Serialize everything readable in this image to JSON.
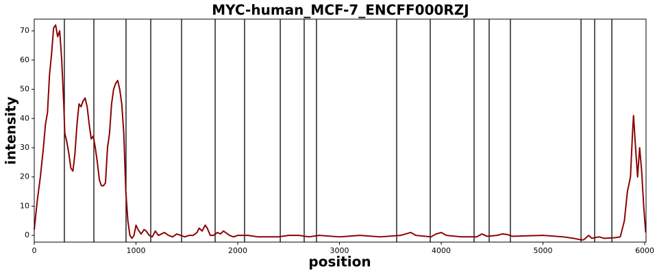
{
  "chart_data": {
    "type": "line",
    "title": "MYC-human_MCF-7_ENCFF000RZJ",
    "x_label": "position",
    "y_label": "intensity",
    "xlim": [
      0,
      6013
    ],
    "ylim": [
      -2.3,
      74
    ],
    "xticks": [
      0,
      1000,
      2000,
      3000,
      4000,
      5000,
      6000
    ],
    "yticks": [
      0,
      10,
      20,
      30,
      40,
      50,
      60,
      70
    ],
    "boundaries": [
      296,
      586,
      902,
      1145,
      1448,
      1778,
      2067,
      2418,
      2653,
      2774,
      3562,
      3892,
      4323,
      4471,
      4680,
      5374,
      5508,
      5677
    ],
    "boundary_color": "#000000",
    "x": [
      0,
      30,
      60,
      90,
      110,
      130,
      150,
      170,
      190,
      210,
      230,
      250,
      270,
      290,
      300,
      320,
      340,
      360,
      380,
      400,
      420,
      440,
      460,
      480,
      500,
      520,
      540,
      560,
      580,
      600,
      620,
      640,
      660,
      680,
      700,
      720,
      740,
      760,
      780,
      800,
      820,
      840,
      860,
      880,
      900,
      920,
      940,
      960,
      980,
      1000,
      1020,
      1050,
      1080,
      1100,
      1130,
      1160,
      1190,
      1220,
      1250,
      1280,
      1320,
      1360,
      1400,
      1440,
      1480,
      1520,
      1560,
      1600,
      1620,
      1650,
      1680,
      1700,
      1730,
      1760,
      1780,
      1800,
      1830,
      1860,
      1880,
      1920,
      1960,
      2000,
      2100,
      2200,
      2300,
      2400,
      2500,
      2600,
      2700,
      2800,
      3000,
      3200,
      3400,
      3600,
      3650,
      3700,
      3750,
      3900,
      3950,
      4000,
      4050,
      4200,
      4350,
      4400,
      4450,
      4550,
      4600,
      4650,
      4700,
      5000,
      5200,
      5300,
      5370,
      5400,
      5450,
      5480,
      5550,
      5600,
      5700,
      5760,
      5800,
      5830,
      5860,
      5880,
      5890,
      5910,
      5930,
      5950,
      5970,
      5990,
      6010
    ],
    "series": [
      {
        "color": "#8b0000",
        "values": [
          2,
          12,
          20,
          30,
          38,
          42,
          55,
          62,
          71,
          72,
          68,
          70,
          60,
          45,
          35,
          32,
          28,
          23,
          22,
          28,
          38,
          45,
          44,
          46,
          47,
          44,
          38,
          33,
          34,
          30,
          25,
          19,
          17,
          17,
          18,
          30,
          35,
          45,
          50,
          52,
          53,
          50,
          45,
          35,
          15,
          5,
          0,
          -1,
          0,
          3.5,
          2,
          0.5,
          2,
          1.5,
          0,
          -0.5,
          1.5,
          0,
          0.5,
          1,
          0,
          -0.5,
          0.5,
          0,
          -0.5,
          0,
          0,
          1,
          2.5,
          1.5,
          3.5,
          2.5,
          0,
          0,
          0.5,
          1,
          0.5,
          1.5,
          1,
          0,
          -0.5,
          0,
          0,
          -0.5,
          -0.5,
          -0.5,
          0,
          0,
          -0.5,
          0,
          -0.5,
          0,
          -0.5,
          0,
          0.5,
          1,
          0,
          -0.5,
          0.5,
          1,
          0,
          -0.5,
          -0.5,
          0.5,
          -0.3,
          0,
          0.5,
          0.3,
          -0.3,
          0,
          -0.5,
          -1,
          -1.5,
          -1.5,
          0,
          -1,
          -0.5,
          -1,
          -0.8,
          -0.5,
          5,
          15,
          20,
          35,
          41,
          30,
          20,
          30,
          22,
          10,
          1
        ]
      }
    ]
  }
}
